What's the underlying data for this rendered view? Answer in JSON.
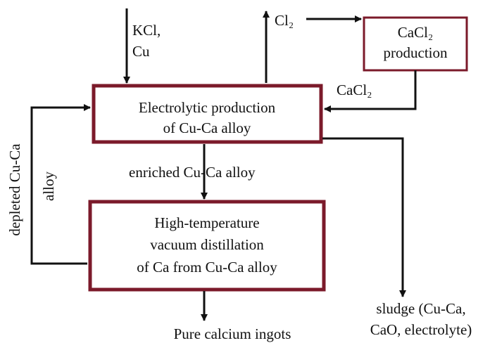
{
  "nodes": [
    {
      "label": [
        "Electrolytic production",
        "of Cu-Ca alloy"
      ]
    },
    {
      "label": [
        "High-temperature",
        "vacuum distillation",
        "of Ca from Cu-Ca alloy"
      ]
    },
    {
      "label": [
        "CaCl₂",
        "production"
      ]
    }
  ],
  "edges": [
    {
      "label": [
        "KCl,",
        "Cu"
      ]
    },
    {
      "label": [
        "Cl₂"
      ]
    },
    {
      "label": [
        "CaCl₂"
      ]
    },
    {
      "label": [
        "enriched Cu-Ca alloy"
      ]
    },
    {
      "label": [
        "depleted Cu-Ca",
        "alloy"
      ]
    },
    {
      "label": [
        "sludge (Cu-Ca,",
        "CaO, electrolyte)"
      ]
    },
    {
      "label": [
        "Pure calcium ingots"
      ]
    }
  ]
}
